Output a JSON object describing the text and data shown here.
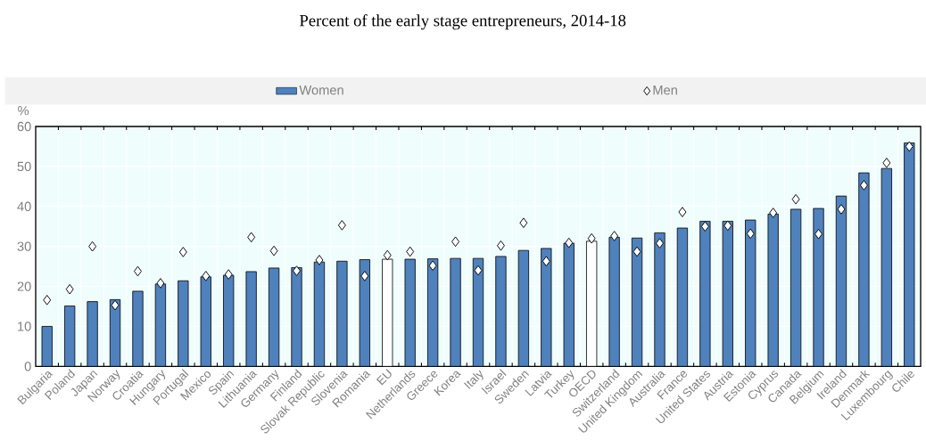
{
  "chart_data": {
    "type": "bar",
    "title": "Percent of the early stage entrepreneurs, 2014-18",
    "ylabel": "%",
    "categories": [
      "Bulgaria",
      "Poland",
      "Japan",
      "Norway",
      "Croatia",
      "Hungary",
      "Portugal",
      "Mexico",
      "Spain",
      "Lithuania",
      "Germany",
      "Finland",
      "Slovak Republic",
      "Slovenia",
      "Romania",
      "EU",
      "Netherlands",
      "Greece",
      "Korea",
      "Italy",
      "Israel",
      "Sweden",
      "Latvia",
      "Turkey",
      "OECD",
      "Switzerland",
      "United Kingdom",
      "Australia",
      "France",
      "United States",
      "Austria",
      "Estonia",
      "Cyprus",
      "Canada",
      "Belgium",
      "Ireland",
      "Denmark",
      "Luxembourg",
      "Chile"
    ],
    "series": [
      {
        "name": "Women",
        "color": "#4f81bd",
        "colors": [
          "#4f81bd",
          "#4f81bd",
          "#4f81bd",
          "#4f81bd",
          "#4f81bd",
          "#4f81bd",
          "#4f81bd",
          "#4f81bd",
          "#4f81bd",
          "#4f81bd",
          "#4f81bd",
          "#4f81bd",
          "#4f81bd",
          "#4f81bd",
          "#4f81bd",
          "#ffffff",
          "#4f81bd",
          "#4f81bd",
          "#4f81bd",
          "#4f81bd",
          "#4f81bd",
          "#4f81bd",
          "#4f81bd",
          "#4f81bd",
          "#ffffff",
          "#4f81bd",
          "#4f81bd",
          "#4f81bd",
          "#4f81bd",
          "#4f81bd",
          "#4f81bd",
          "#4f81bd",
          "#4f81bd",
          "#4f81bd",
          "#4f81bd",
          "#4f81bd",
          "#4f81bd",
          "#4f81bd",
          "#4f81bd"
        ],
        "values": [
          10.0,
          15.1,
          16.2,
          16.7,
          18.8,
          20.6,
          21.4,
          22.4,
          22.8,
          23.7,
          24.6,
          24.7,
          26.1,
          26.3,
          26.7,
          26.8,
          26.8,
          26.9,
          27.0,
          27.0,
          27.5,
          29.0,
          29.5,
          30.8,
          31.3,
          32.3,
          32.1,
          33.4,
          34.6,
          36.3,
          36.3,
          36.6,
          38.1,
          39.3,
          39.5,
          42.6,
          48.4,
          49.5,
          55.9
        ]
      },
      {
        "name": "Men",
        "type": "scatter",
        "marker": "diamond",
        "color": "#ffffff",
        "values": [
          16.6,
          19.3,
          30.0,
          15.3,
          23.8,
          20.8,
          28.6,
          22.6,
          23.0,
          32.3,
          28.9,
          23.9,
          26.6,
          35.3,
          22.6,
          27.8,
          28.7,
          25.2,
          31.2,
          24.0,
          30.2,
          35.9,
          26.3,
          30.9,
          32.0,
          32.6,
          28.7,
          30.8,
          38.6,
          35.0,
          35.2,
          33.2,
          38.4,
          41.8,
          33.1,
          39.3,
          45.3,
          50.9,
          55.0
        ]
      }
    ],
    "ylim": [
      0,
      60
    ],
    "yticks": [
      0,
      10,
      20,
      30,
      40,
      50,
      60
    ],
    "grid": true,
    "legend": "top"
  }
}
